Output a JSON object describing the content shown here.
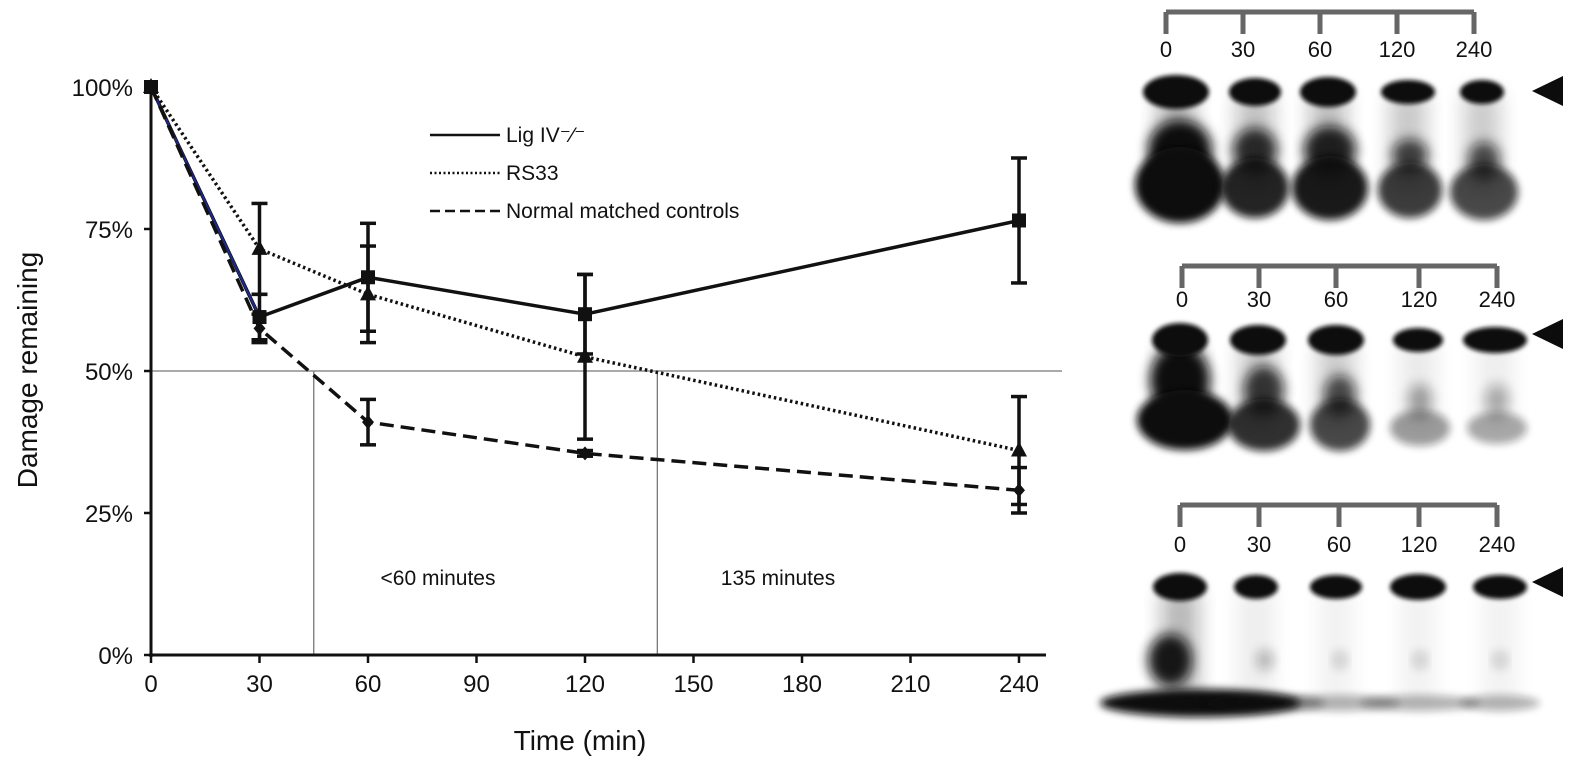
{
  "chart_data": {
    "type": "line",
    "xlabel": "Time (min)",
    "ylabel": "Damage remaining",
    "xlim": [
      0,
      250
    ],
    "ylim": [
      0,
      100
    ],
    "x_ticks": [
      0,
      30,
      60,
      90,
      120,
      150,
      180,
      210,
      240
    ],
    "x_tick_labels": [
      "0",
      "30",
      "60",
      "90",
      "120",
      "150",
      "180",
      "210",
      "240"
    ],
    "y_ticks": [
      0,
      25,
      50,
      75,
      100
    ],
    "y_tick_labels": [
      "0%",
      "25%",
      "50%",
      "75%",
      "100%"
    ],
    "legend_position": "top-center",
    "grid": false,
    "reference_line": {
      "y": 50
    },
    "series": [
      {
        "name": "Lig IV⁻⁄⁻",
        "style": "solid",
        "marker": "square",
        "x": [
          0,
          30,
          60,
          120,
          240
        ],
        "y": [
          100,
          59.5,
          66.5,
          60,
          76.5
        ],
        "err": [
          0,
          4,
          9.5,
          7,
          11
        ]
      },
      {
        "name": "RS33",
        "style": "dotted",
        "marker": "triangle",
        "x": [
          0,
          30,
          60,
          120,
          240
        ],
        "y": [
          100,
          71.5,
          63.5,
          52.5,
          36
        ],
        "err": [
          0,
          8,
          8.5,
          14.5,
          9.5
        ]
      },
      {
        "name": "Normal matched controls",
        "style": "dashed",
        "marker": "diamond",
        "x": [
          0,
          30,
          60,
          120,
          240
        ],
        "y": [
          100,
          57.5,
          41,
          35.5,
          29
        ],
        "err": [
          0,
          2.5,
          4,
          0.5,
          4
        ]
      }
    ],
    "annotations": [
      {
        "text": "<60 minutes",
        "x_marker": 45
      },
      {
        "text": "135 minutes",
        "x_marker": 140
      }
    ]
  },
  "gel_panels": [
    {
      "lane_labels": [
        "0",
        "30",
        "60",
        "120",
        "240"
      ]
    },
    {
      "lane_labels": [
        "0",
        "30",
        "60",
        "120",
        "240"
      ]
    },
    {
      "lane_labels": [
        "0",
        "30",
        "60",
        "120",
        "240"
      ]
    }
  ],
  "colors": {
    "ink": "#111111",
    "accent_line": "#1c2a8f",
    "gel_band": "#0c0c0c",
    "bracket": "#666666"
  }
}
